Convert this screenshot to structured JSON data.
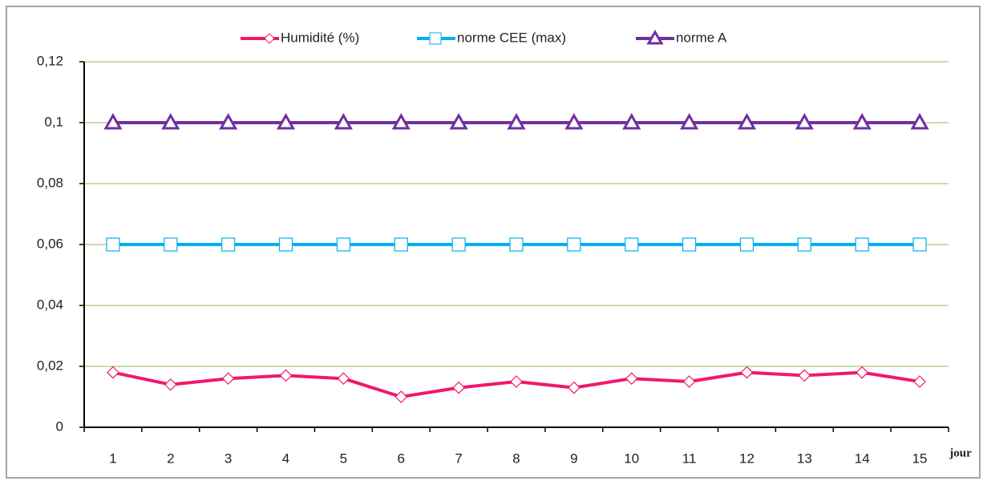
{
  "chart_data": {
    "type": "line",
    "categories": [
      "1",
      "2",
      "3",
      "4",
      "5",
      "6",
      "7",
      "8",
      "9",
      "10",
      "11",
      "12",
      "13",
      "14",
      "15"
    ],
    "x_label": "jour",
    "series": [
      {
        "name": "Humidité (%)",
        "color": "#f0186e",
        "marker": "diamond",
        "values": [
          0.018,
          0.014,
          0.016,
          0.017,
          0.016,
          0.01,
          0.013,
          0.015,
          0.013,
          0.016,
          0.015,
          0.018,
          0.017,
          0.018,
          0.015
        ]
      },
      {
        "name": "norme CEE (max)",
        "color": "#00b0f0",
        "marker": "square",
        "values": [
          0.06,
          0.06,
          0.06,
          0.06,
          0.06,
          0.06,
          0.06,
          0.06,
          0.06,
          0.06,
          0.06,
          0.06,
          0.06,
          0.06,
          0.06
        ]
      },
      {
        "name": "norme A",
        "color": "#7030a0",
        "marker": "triangle",
        "values": [
          0.1,
          0.1,
          0.1,
          0.1,
          0.1,
          0.1,
          0.1,
          0.1,
          0.1,
          0.1,
          0.1,
          0.1,
          0.1,
          0.1,
          0.1
        ]
      }
    ],
    "ylim": [
      0,
      0.12
    ],
    "yticks": [
      0,
      {
        "value": 0.02,
        "label": "0,02"
      },
      {
        "value": 0.04,
        "label": "0,04"
      },
      {
        "value": 0.06,
        "label": "0,06"
      },
      {
        "value": 0.08,
        "label": "0,08"
      },
      {
        "value": 0.1,
        "label": "0,1"
      },
      {
        "value": 0.12,
        "label": "0,12"
      }
    ],
    "grid": true,
    "grid_color": "#a9c878",
    "legend": "top"
  }
}
